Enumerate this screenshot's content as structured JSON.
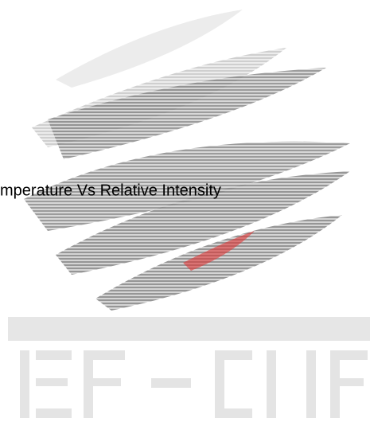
{
  "caption": "mperature Vs Relative Intensity"
}
